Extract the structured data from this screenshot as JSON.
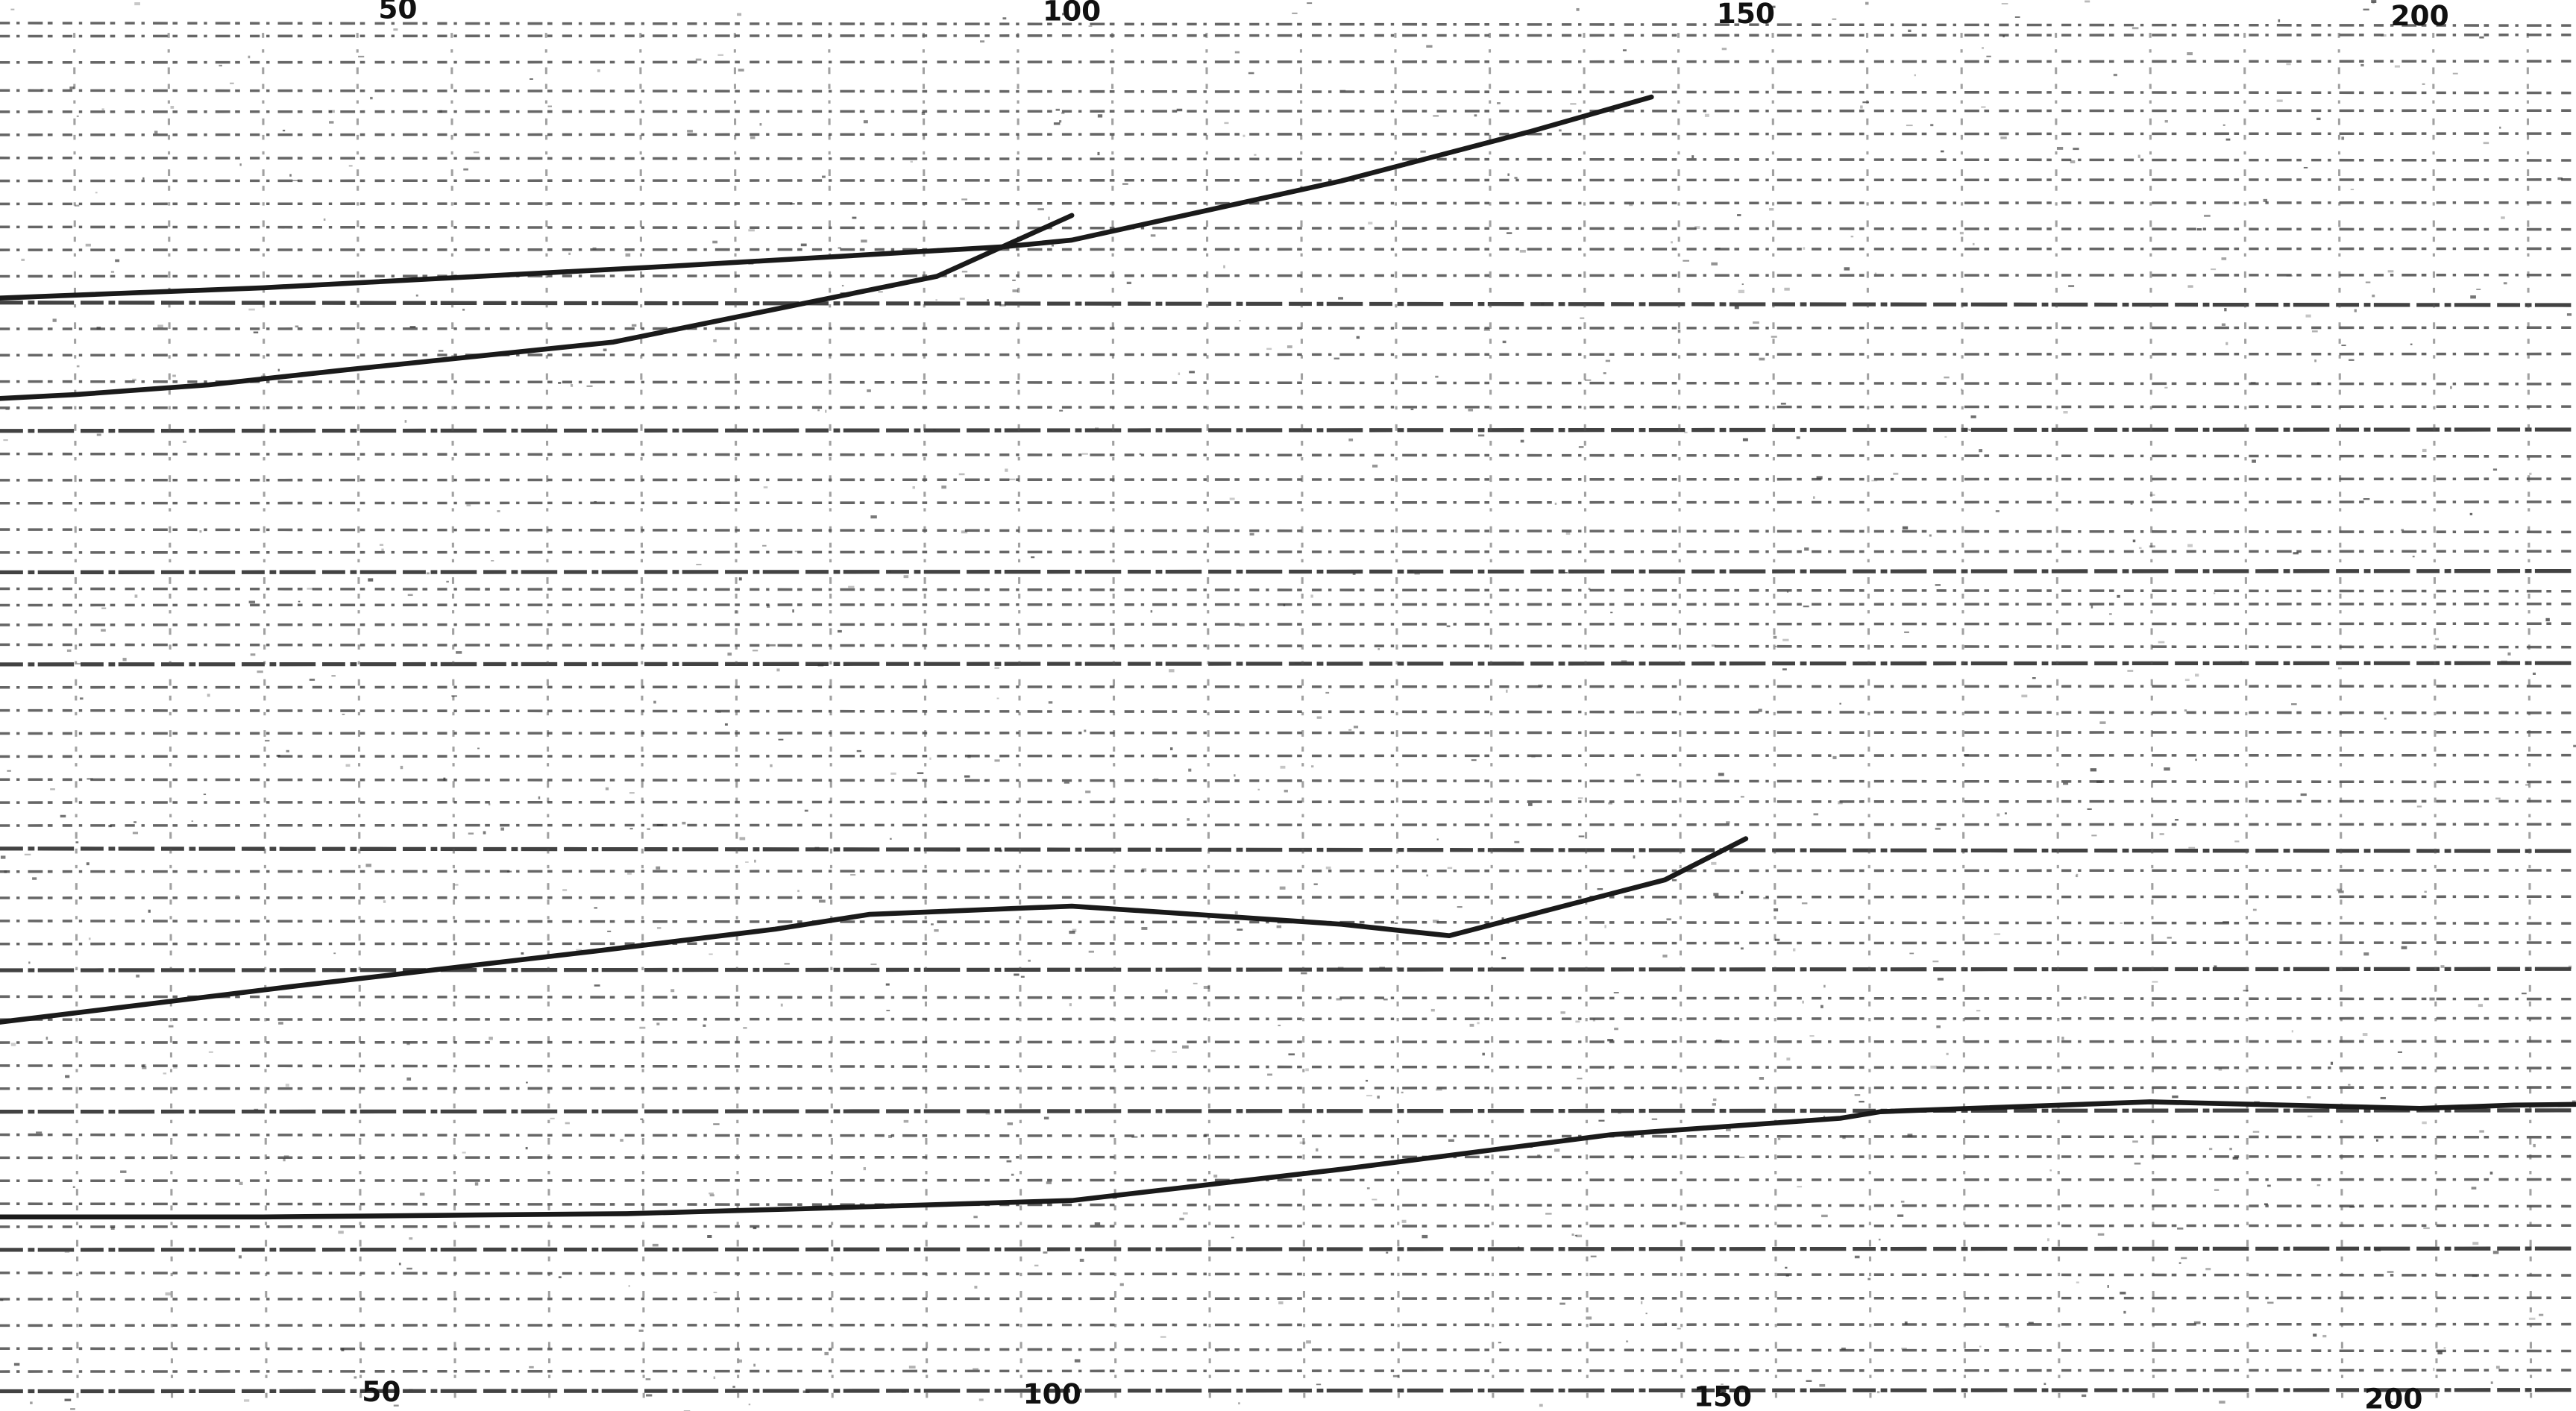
{
  "chart_data": {
    "type": "line",
    "title": "",
    "xlabel": "",
    "ylabel": "",
    "grid": true,
    "x_range": [
      -6,
      217
    ],
    "x_ticks_top": [
      50,
      100,
      150,
      200
    ],
    "x_ticks_bottom": [
      50,
      100,
      150,
      200
    ],
    "x_tick_labels_top": [
      "50",
      "100",
      "150",
      "200"
    ],
    "x_tick_labels_bottom": [
      "50",
      "100",
      "150",
      "200"
    ],
    "series": [
      {
        "points": [
          [
            -6,
            190
          ],
          [
            12,
            184
          ],
          [
            40,
            175
          ],
          [
            70,
            162
          ],
          [
            95,
            150
          ],
          [
            100,
            146
          ],
          [
            120,
            110
          ],
          [
            134,
            80
          ],
          [
            143,
            59
          ]
        ]
      },
      {
        "points": [
          [
            -6,
            247
          ],
          [
            14,
            245
          ],
          [
            26,
            240
          ],
          [
            36,
            234
          ],
          [
            46,
            225
          ],
          [
            66,
            208
          ],
          [
            90,
            168
          ],
          [
            100,
            131
          ]
        ]
      },
      {
        "points": [
          [
            -6,
            642
          ],
          [
            12,
            650
          ],
          [
            17,
            625
          ],
          [
            30,
            612
          ],
          [
            42,
            600
          ],
          [
            65,
            578
          ],
          [
            78,
            565
          ],
          [
            85,
            556
          ],
          [
            100,
            551
          ],
          [
            120,
            562
          ],
          [
            128,
            569
          ],
          [
            144,
            535
          ],
          [
            150,
            510
          ]
        ]
      },
      {
        "points": [
          [
            -6,
            750
          ],
          [
            -2,
            743
          ],
          [
            15,
            740
          ],
          [
            40,
            740
          ],
          [
            67,
            738
          ],
          [
            80,
            735
          ],
          [
            100,
            730
          ],
          [
            120,
            711
          ],
          [
            140,
            690
          ],
          [
            157,
            680
          ],
          [
            160,
            676
          ],
          [
            180,
            670
          ],
          [
            200,
            674
          ],
          [
            207,
            672
          ],
          [
            217,
            671
          ]
        ]
      }
    ]
  }
}
